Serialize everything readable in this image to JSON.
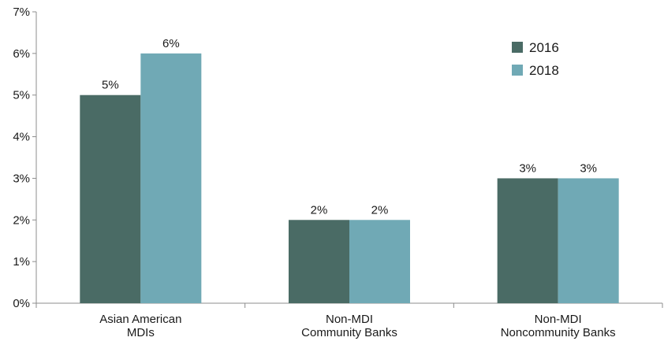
{
  "chart_data": {
    "type": "bar",
    "categories": [
      [
        "Asian American",
        "MDIs"
      ],
      [
        "Non-MDI",
        "Community Banks"
      ],
      [
        "Non-MDI",
        "Noncommunity Banks"
      ]
    ],
    "series": [
      {
        "name": "2016",
        "values": [
          5,
          2,
          3
        ],
        "labels": [
          "5%",
          "2%",
          "3%"
        ],
        "color": "#4a6b65"
      },
      {
        "name": "2018",
        "values": [
          6,
          2,
          3
        ],
        "labels": [
          "6%",
          "2%",
          "3%"
        ],
        "color": "#70a9b5"
      }
    ],
    "ylim": [
      0,
      7
    ],
    "yticks": [
      "0%",
      "1%",
      "2%",
      "3%",
      "4%",
      "5%",
      "6%",
      "7%"
    ],
    "title": "",
    "xlabel": "",
    "ylabel": "",
    "grid": false,
    "legend_position": "top-right",
    "axis_color": "#8c8c8c"
  }
}
